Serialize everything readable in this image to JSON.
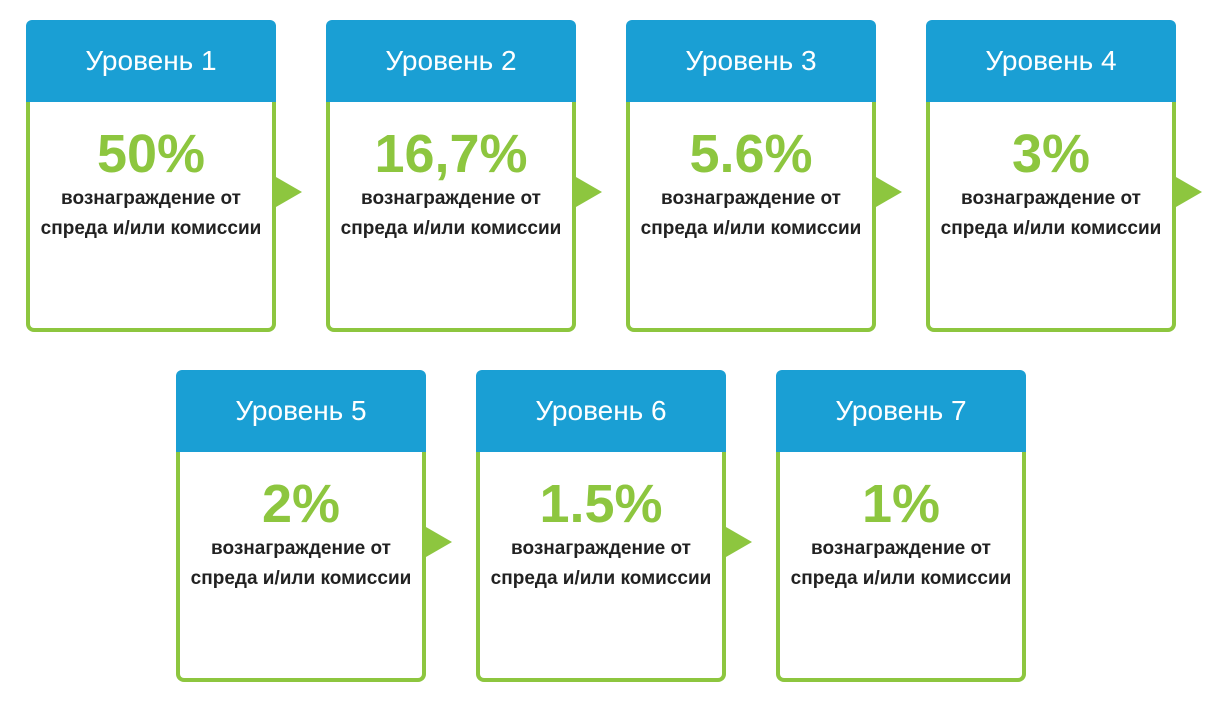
{
  "levels": [
    {
      "title": "Уровень 1",
      "percent": "50%",
      "description": "вознаграждение от спреда и/или комиссии"
    },
    {
      "title": "Уровень 2",
      "percent": "16,7%",
      "description": "вознаграждение от спреда и/или комиссии"
    },
    {
      "title": "Уровень 3",
      "percent": "5.6%",
      "description": "вознаграждение от спреда и/или комиссии"
    },
    {
      "title": "Уровень 4",
      "percent": "3%",
      "description": "вознаграждение от спреда и/или комиссии"
    },
    {
      "title": "Уровень 5",
      "percent": "2%",
      "description": "вознаграждение от спреда и/или комиссии"
    },
    {
      "title": "Уровень 6",
      "percent": "1.5%",
      "description": "вознаграждение от спреда и/или комиссии"
    },
    {
      "title": "Уровень 7",
      "percent": "1%",
      "description": "вознаграждение от спреда и/или комиссии"
    }
  ]
}
